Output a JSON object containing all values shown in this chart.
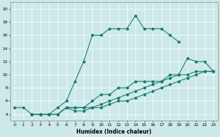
{
  "xlabel": "Humidex (Indice chaleur)",
  "bg_color": "#cce8e8",
  "line_color": "#1a7a6e",
  "grid_color": "#ffffff",
  "xlim": [
    -0.5,
    23.5
  ],
  "ylim": [
    3,
    21
  ],
  "xticks": [
    0,
    1,
    2,
    3,
    4,
    5,
    6,
    7,
    8,
    9,
    10,
    11,
    12,
    13,
    14,
    15,
    16,
    17,
    18,
    19,
    20,
    21,
    22,
    23
  ],
  "yticks": [
    4,
    6,
    8,
    10,
    12,
    14,
    16,
    18,
    20
  ],
  "s1_x": [
    0,
    1,
    2,
    3,
    4,
    5,
    6,
    7,
    8,
    9,
    10,
    11,
    12,
    13,
    14,
    15,
    16,
    17,
    18,
    19
  ],
  "s1_y": [
    5,
    5,
    4,
    4,
    4,
    5,
    6,
    9,
    12,
    16,
    16,
    17,
    17,
    17,
    19,
    17,
    17,
    17,
    16,
    15
  ],
  "s2_x": [
    2,
    3,
    4,
    5,
    6,
    7,
    8,
    9,
    10,
    11,
    12,
    13,
    14,
    15,
    16,
    17,
    18,
    19,
    20,
    21,
    22,
    23
  ],
  "s2_y": [
    4,
    4,
    4,
    4,
    5,
    5,
    5,
    6,
    7,
    7,
    8,
    8,
    9,
    9,
    9,
    9,
    10,
    10,
    12.5,
    12,
    12,
    10.5
  ],
  "s3_x": [
    2,
    3,
    4,
    5,
    6,
    7,
    8,
    9,
    10,
    11,
    12,
    13,
    14,
    15,
    16,
    17,
    18,
    19,
    20,
    21,
    22,
    23
  ],
  "s3_y": [
    4,
    4,
    4,
    4,
    5,
    5,
    5,
    5,
    5.5,
    6,
    6.5,
    7,
    7.5,
    8,
    8.5,
    9,
    9.5,
    10,
    10,
    10.5,
    10.5,
    10.5
  ],
  "s4_x": [
    2,
    3,
    4,
    5,
    6,
    7,
    8,
    9,
    10,
    11,
    12,
    13,
    14,
    15,
    16,
    17,
    18,
    19,
    20,
    21,
    22,
    23
  ],
  "s4_y": [
    4,
    4,
    4,
    4,
    5,
    4.5,
    4.5,
    5,
    5,
    5.5,
    6,
    6,
    6.5,
    7,
    7.5,
    8,
    8.5,
    9,
    9.5,
    10,
    10.5,
    10.5
  ]
}
